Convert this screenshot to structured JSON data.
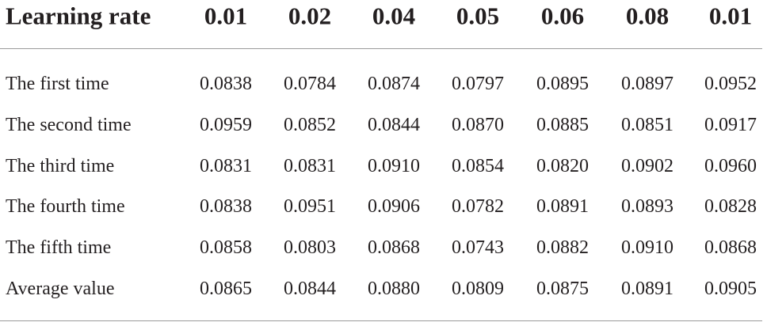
{
  "table": {
    "header": [
      "Learning rate",
      "0.01",
      "0.02",
      "0.04",
      "0.05",
      "0.06",
      "0.08",
      "0.01"
    ],
    "rows": [
      [
        "The first time",
        "0.0838",
        "0.0784",
        "0.0874",
        "0.0797",
        "0.0895",
        "0.0897",
        "0.0952"
      ],
      [
        "The second time",
        "0.0959",
        "0.0852",
        "0.0844",
        "0.0870",
        "0.0885",
        "0.0851",
        "0.0917"
      ],
      [
        "The third time",
        "0.0831",
        "0.0831",
        "0.0910",
        "0.0854",
        "0.0820",
        "0.0902",
        "0.0960"
      ],
      [
        "The fourth time",
        "0.0838",
        "0.0951",
        "0.0906",
        "0.0782",
        "0.0891",
        "0.0893",
        "0.0828"
      ],
      [
        "The fifth time",
        "0.0858",
        "0.0803",
        "0.0868",
        "0.0743",
        "0.0882",
        "0.0910",
        "0.0868"
      ],
      [
        "Average value",
        "0.0865",
        "0.0844",
        "0.0880",
        "0.0809",
        "0.0875",
        "0.0891",
        "0.0905"
      ]
    ]
  }
}
